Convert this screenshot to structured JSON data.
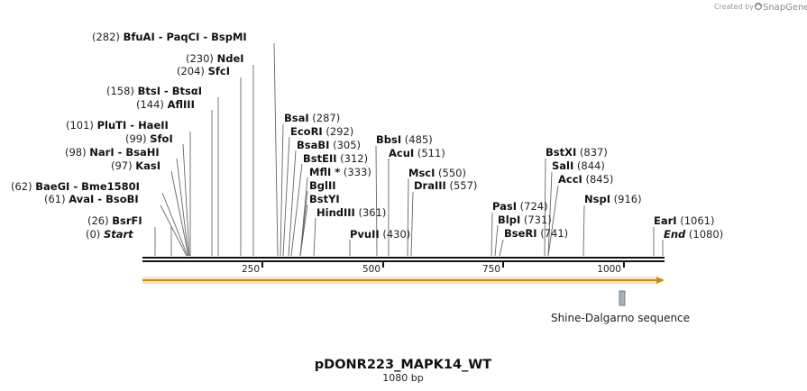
{
  "credit": {
    "prefix": "Created by",
    "brand": "SnapGene"
  },
  "title": "pDONR223_MAPK14_WT",
  "length_label": "1080 bp",
  "sequence_length": 1080,
  "ticks": [
    "250",
    "500",
    "750",
    "1000"
  ],
  "feature": {
    "name": "Shine-Dalgarno sequence"
  },
  "colors": {
    "orf_fill": "#f5c26b",
    "orf_edge": "#c98a1a",
    "feature_box": "#a9b1bb",
    "backbone": "#111111"
  },
  "sites": [
    {
      "id": "start",
      "pos_text": "(0)",
      "parts": [
        "Start"
      ],
      "italic": true
    },
    {
      "id": "bsrfi",
      "pos_text": "(26)",
      "parts": [
        "BsrFI"
      ]
    },
    {
      "id": "avai",
      "pos_text": "(61)",
      "parts": [
        "AvaI",
        "BsoBI"
      ]
    },
    {
      "id": "baegi",
      "pos_text": "(62)",
      "parts": [
        "BaeGI",
        "Bme1580I"
      ]
    },
    {
      "id": "kasi",
      "pos_text": "(97)",
      "parts": [
        "KasI"
      ]
    },
    {
      "id": "nari",
      "pos_text": "(98)",
      "parts": [
        "NarI",
        "BsaHI"
      ]
    },
    {
      "id": "sfoi",
      "pos_text": "(99)",
      "parts": [
        "SfoI"
      ]
    },
    {
      "id": "pluti",
      "pos_text": "(101)",
      "parts": [
        "PluTI",
        "HaeII"
      ]
    },
    {
      "id": "aflIII",
      "pos_text": "(144)",
      "parts": [
        "AflIII"
      ]
    },
    {
      "id": "btsi",
      "pos_text": "(158)",
      "parts": [
        "BtsI",
        "BtsαI"
      ]
    },
    {
      "id": "sfci",
      "pos_text": "(204)",
      "parts": [
        "SfcI"
      ]
    },
    {
      "id": "ndei",
      "pos_text": "(230)",
      "parts": [
        "NdeI"
      ]
    },
    {
      "id": "bfuai",
      "pos_text": "(282)",
      "parts": [
        "BfuAI",
        "PaqCI",
        "BspMI"
      ]
    },
    {
      "id": "bsai",
      "pos_text": "(287)",
      "parts": [
        "BsaI"
      ]
    },
    {
      "id": "ecori",
      "pos_text": "(292)",
      "parts": [
        "EcoRI"
      ]
    },
    {
      "id": "bsabi",
      "pos_text": "(305)",
      "parts": [
        "BsaBI"
      ]
    },
    {
      "id": "bsteii",
      "pos_text": "(312)",
      "parts": [
        "BstEII"
      ]
    },
    {
      "id": "mfli",
      "pos_text": "(333)",
      "parts": [
        "MflI *"
      ]
    },
    {
      "id": "bglii",
      "pos_text": "",
      "parts": [
        "BglII"
      ]
    },
    {
      "id": "bstyi",
      "pos_text": "",
      "parts": [
        "BstYI"
      ]
    },
    {
      "id": "hindiii",
      "pos_text": "(361)",
      "parts": [
        "HindIII"
      ]
    },
    {
      "id": "pvuii",
      "pos_text": "(430)",
      "parts": [
        "PvuII"
      ]
    },
    {
      "id": "bbsi",
      "pos_text": "(485)",
      "parts": [
        "BbsI"
      ]
    },
    {
      "id": "acui",
      "pos_text": "(511)",
      "parts": [
        "AcuI"
      ]
    },
    {
      "id": "msci",
      "pos_text": "(550)",
      "parts": [
        "MscI"
      ]
    },
    {
      "id": "draiii",
      "pos_text": "(557)",
      "parts": [
        "DraIII"
      ]
    },
    {
      "id": "pasi",
      "pos_text": "(724)",
      "parts": [
        "PasI"
      ]
    },
    {
      "id": "blpi",
      "pos_text": "(731)",
      "parts": [
        "BlpI"
      ]
    },
    {
      "id": "bseri",
      "pos_text": "(741)",
      "parts": [
        "BseRI"
      ]
    },
    {
      "id": "bstxi",
      "pos_text": "(837)",
      "parts": [
        "BstXI"
      ]
    },
    {
      "id": "sali",
      "pos_text": "(844)",
      "parts": [
        "SalI"
      ]
    },
    {
      "id": "acci",
      "pos_text": "(845)",
      "parts": [
        "AccI"
      ]
    },
    {
      "id": "nspi",
      "pos_text": "(916)",
      "parts": [
        "NspI"
      ]
    },
    {
      "id": "eari",
      "pos_text": "(1061)",
      "parts": [
        "EarI"
      ]
    },
    {
      "id": "end",
      "pos_text": "(1080)",
      "parts": [
        "End"
      ],
      "italic": true
    }
  ]
}
